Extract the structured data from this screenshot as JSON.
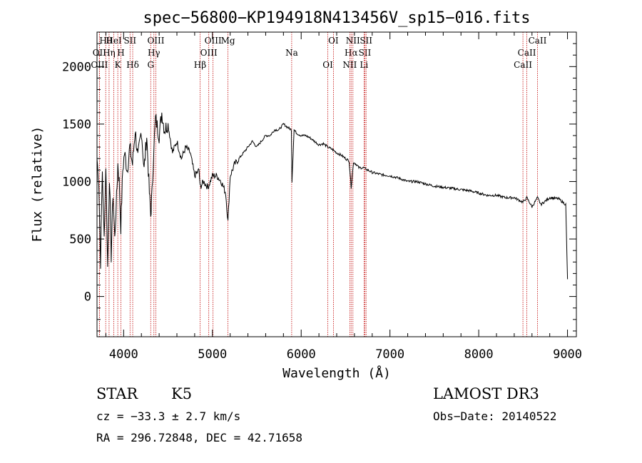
{
  "chart_data": {
    "type": "line",
    "title": "spec−56800−KP194918N413456V_sp15−016.fits",
    "xlabel": "Wavelength (Å)",
    "ylabel": "Flux (relative)",
    "xlim": [
      3700,
      9100
    ],
    "ylim": [
      -350,
      2300
    ],
    "xticks": [
      4000,
      5000,
      6000,
      7000,
      8000,
      9000
    ],
    "yticks": [
      0,
      500,
      1000,
      1500,
      2000
    ],
    "series": [
      {
        "name": "spectrum",
        "x": [
          3700,
          3720,
          3740,
          3760,
          3780,
          3800,
          3820,
          3840,
          3860,
          3880,
          3900,
          3920,
          3935,
          3950,
          3968,
          3990,
          4010,
          4040,
          4070,
          4100,
          4130,
          4160,
          4200,
          4230,
          4260,
          4290,
          4305,
          4320,
          4340,
          4360,
          4400,
          4430,
          4460,
          4500,
          4550,
          4600,
          4650,
          4700,
          4750,
          4800,
          4850,
          4861,
          4900,
          4950,
          5000,
          5050,
          5100,
          5150,
          5175,
          5200,
          5250,
          5300,
          5350,
          5400,
          5450,
          5500,
          5550,
          5600,
          5650,
          5700,
          5750,
          5800,
          5850,
          5890,
          5896,
          5920,
          5950,
          6000,
          6050,
          6100,
          6150,
          6200,
          6250,
          6300,
          6350,
          6400,
          6450,
          6500,
          6540,
          6563,
          6590,
          6620,
          6650,
          6700,
          6750,
          6800,
          6900,
          7000,
          7100,
          7200,
          7300,
          7400,
          7500,
          7600,
          7700,
          7800,
          7900,
          8000,
          8100,
          8200,
          8300,
          8400,
          8498,
          8542,
          8600,
          8662,
          8700,
          8800,
          8900,
          8980,
          9000
        ],
        "y": [
          1200,
          1000,
          300,
          1100,
          500,
          1150,
          250,
          1050,
          350,
          900,
          500,
          850,
          1150,
          1000,
          600,
          1100,
          1250,
          1100,
          1300,
          1150,
          1450,
          1200,
          1450,
          1100,
          1400,
          900,
          700,
          900,
          1300,
          1550,
          1400,
          1600,
          1450,
          1500,
          1250,
          1350,
          1200,
          1300,
          1250,
          1050,
          1100,
          950,
          1000,
          950,
          1050,
          1050,
          1000,
          900,
          650,
          1050,
          1150,
          1200,
          1250,
          1300,
          1350,
          1300,
          1350,
          1400,
          1400,
          1450,
          1450,
          1500,
          1470,
          1450,
          1000,
          1450,
          1420,
          1400,
          1400,
          1380,
          1350,
          1320,
          1330,
          1300,
          1280,
          1250,
          1230,
          1200,
          1180,
          950,
          1170,
          1150,
          1120,
          1120,
          1100,
          1080,
          1060,
          1050,
          1030,
          1000,
          1000,
          980,
          960,
          950,
          940,
          930,
          920,
          900,
          880,
          880,
          860,
          860,
          820,
          860,
          780,
          860,
          800,
          860,
          850,
          800,
          150
        ]
      }
    ],
    "lines": [
      {
        "label": "Hθ",
        "x": 3798
      },
      {
        "label": "OII",
        "x": 3727
      },
      {
        "label": "OIII",
        "x": 3727
      },
      {
        "label": "HeI",
        "x": 3889
      },
      {
        "label": "Hη",
        "x": 3836
      },
      {
        "label": "K",
        "x": 3934
      },
      {
        "label": "SII",
        "x": 4072
      },
      {
        "label": "H",
        "x": 3969
      },
      {
        "label": "Hδ",
        "x": 4102
      },
      {
        "label": "OIII",
        "x": 4363
      },
      {
        "label": "Hγ",
        "x": 4341
      },
      {
        "label": "G",
        "x": 4305
      },
      {
        "label": "OIII",
        "x": 5007
      },
      {
        "label": "OIII",
        "x": 4959
      },
      {
        "label": "Hβ",
        "x": 4861
      },
      {
        "label": "Mg",
        "x": 5175
      },
      {
        "label": "Na",
        "x": 5893
      },
      {
        "label": "OI",
        "x": 6300
      },
      {
        "label": "OI",
        "x": 6363
      },
      {
        "label": "Hα",
        "x": 6563
      },
      {
        "label": "NII",
        "x": 6548
      },
      {
        "label": "NII",
        "x": 6583
      },
      {
        "label": "SII",
        "x": 6717
      },
      {
        "label": "Li",
        "x": 6708
      },
      {
        "label": "SII",
        "x": 6731
      },
      {
        "label": "CaII",
        "x": 8542
      },
      {
        "label": "CaII",
        "x": 8498
      },
      {
        "label": "CaII",
        "x": 8662
      }
    ]
  },
  "info": {
    "class": "STAR",
    "subclass": "K5",
    "survey": "LAMOST DR3",
    "cz": "cz = −33.3 ± 2.7 km/s",
    "obs_date": "Obs−Date: 20140522",
    "coords": "RA = 296.72848, DEC =  42.71658"
  },
  "colors": {
    "spectrum": "#000000",
    "line_marker": "#c00000"
  }
}
